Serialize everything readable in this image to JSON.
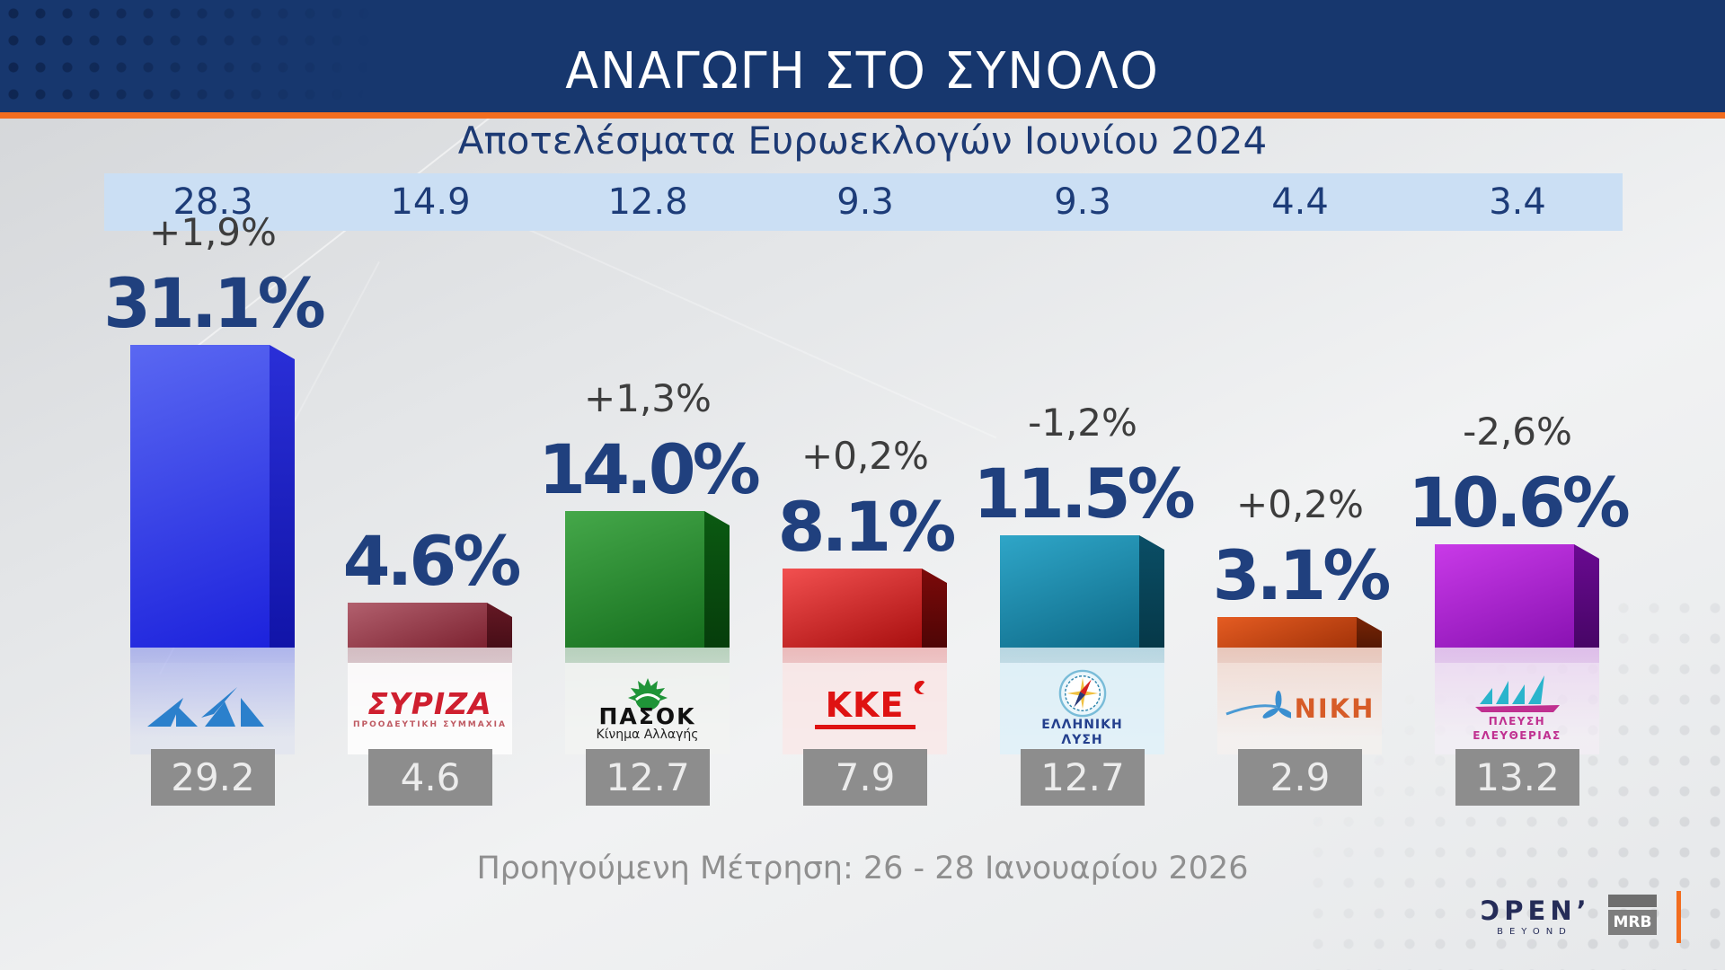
{
  "header": {
    "title": "ΑΝΑΓΩΓΗ ΣΤΟ ΣΥΝΟΛΟ"
  },
  "subtitle": "Αποτελέσματα Ευρωεκλογών Ιουνίου 2024",
  "footer_note": "Προηγούμενη Μέτρηση: 26 - 28 Ιανουαρίου 2026",
  "branding": {
    "open_main": "ƆPEN’",
    "open_sub": "BEYOND",
    "mrb_label": "MRB",
    "accent_orange": "#f26d1f",
    "header_navy": "#17376e"
  },
  "chart_data": {
    "type": "bar",
    "title": "ΑΝΑΓΩΓΗ ΣΤΟ ΣΥΝΟΛΟ",
    "subtitle": "Αποτελέσματα Ευρωεκλογών Ιουνίου 2024",
    "unit": "%",
    "categories": [
      "ΝΔ",
      "ΣΥΡΙΖΑ",
      "ΠΑΣΟΚ",
      "ΚΚΕ",
      "ΕΛΛΗΝΙΚΗ ΛΥΣΗ",
      "ΝΙΚΗ",
      "ΠΛΕΥΣΗ ΕΛΕΥΘΕΡΙΑΣ"
    ],
    "series": [
      {
        "name": "current_poll_pct",
        "values": [
          31.1,
          4.6,
          14.0,
          8.1,
          11.5,
          3.1,
          10.6
        ]
      },
      {
        "name": "euro_elections_june_2024",
        "values": [
          28.3,
          14.9,
          12.8,
          9.3,
          9.3,
          4.4,
          3.4
        ]
      },
      {
        "name": "previous_measurement_26_28_jan_2026",
        "values": [
          29.2,
          4.6,
          12.7,
          7.9,
          12.7,
          2.9,
          13.2
        ]
      }
    ],
    "changes": [
      "+1,9%",
      null,
      "+1,3%",
      "+0,2%",
      "-1,2%",
      "+0,2%",
      "-2,6%"
    ],
    "parties": [
      {
        "id": "nd",
        "euro_2024": "28.3",
        "change": "+1,9%",
        "value": 31.1,
        "value_label": "31.1%",
        "previous": "29.2",
        "bar": {
          "light": "#5a68f2",
          "dark": "#1c22dc",
          "side_light": "#2a2fd8",
          "side_dark": "#1114a8",
          "reflect": "rgba(80,95,235,0.38)"
        },
        "logo_bg": "rgba(205,212,242,0.25)",
        "logo_color": "#2b80cc"
      },
      {
        "id": "syriza",
        "euro_2024": "14.9",
        "change": null,
        "value": 4.6,
        "value_label": "4.6%",
        "previous": "4.6",
        "bar": {
          "light": "#b2606e",
          "dark": "#7c2230",
          "side_light": "#651824",
          "side_dark": "#470e17",
          "reflect": "rgba(160,80,95,0.30)"
        },
        "logo_bg": "rgba(253,253,253,0.92)",
        "logo_color": "#cf1f2f",
        "logo_line1": "ΣΥΡΙΖΑ",
        "logo_line2": "ΠΡΟΟΔΕΥΤΙΚΗ ΣΥΜΜΑΧΙΑ",
        "logo_line2_color": "#bf5a62"
      },
      {
        "id": "pasok",
        "euro_2024": "12.8",
        "change": "+1,3%",
        "value": 14.0,
        "value_label": "14.0%",
        "previous": "12.7",
        "bar": {
          "light": "#45a84a",
          "dark": "#156e1d",
          "side_light": "#0b5a12",
          "side_dark": "#063d0b",
          "reflect": "rgba(60,140,70,0.30)"
        },
        "logo_bg": "rgba(242,243,242,0.92)",
        "logo_color": "#111111",
        "logo_line1": "ΠΑΣΟΚ",
        "logo_line2": "Κίνημα Αλλαγής",
        "sun_color": "#1f9438"
      },
      {
        "id": "kke",
        "euro_2024": "9.3",
        "change": "+0,2%",
        "value": 8.1,
        "value_label": "8.1%",
        "previous": "7.9",
        "bar": {
          "light": "#f25050",
          "dark": "#a80f0f",
          "side_light": "#7c0a0a",
          "side_dark": "#4e0505",
          "reflect": "rgba(225,60,60,0.30)"
        },
        "logo_bg": "rgba(248,233,233,0.95)",
        "logo_color": "#df1212",
        "logo_line1": "ΚΚΕ"
      },
      {
        "id": "elliniki-lysi",
        "euro_2024": "9.3",
        "change": "-1,2%",
        "value": 11.5,
        "value_label": "11.5%",
        "previous": "12.7",
        "bar": {
          "light": "#2fa6c8",
          "dark": "#0e6a88",
          "side_light": "#0a4e66",
          "side_dark": "#063848",
          "reflect": "rgba(50,150,185,0.30)"
        },
        "logo_bg": "rgba(224,240,248,0.95)",
        "logo_color": "#24408e",
        "logo_line1": "ΕΛΛΗΝΙΚΗ",
        "logo_line2": "ΛΥΣΗ"
      },
      {
        "id": "niki",
        "euro_2024": "4.4",
        "change": "+0,2%",
        "value": 3.1,
        "value_label": "3.1%",
        "previous": "2.9",
        "bar": {
          "light": "#e55c22",
          "dark": "#a33309",
          "side_light": "#7a2506",
          "side_dark": "#541803",
          "reflect": "rgba(215,90,45,0.28)"
        },
        "logo_bg": "rgba(250,242,238,0.45)",
        "logo_color": "#d75c28",
        "logo_line1": "ΝΙΚΗ"
      },
      {
        "id": "plefsi-eleftherias",
        "euro_2024": "3.4",
        "change": "-2,6%",
        "value": 10.6,
        "value_label": "10.6%",
        "previous": "13.2",
        "bar": {
          "light": "#c93ae8",
          "dark": "#8912b2",
          "side_light": "#6a0a92",
          "side_dark": "#470566",
          "reflect": "rgba(185,65,220,0.28)"
        },
        "logo_bg": "rgba(246,238,248,0.55)",
        "logo_color": "#c03090",
        "logo_line1": "ΠΛΕΥΣΗ",
        "logo_line2": "ΕΛΕΥΘΕΡΙΑΣ"
      }
    ]
  }
}
